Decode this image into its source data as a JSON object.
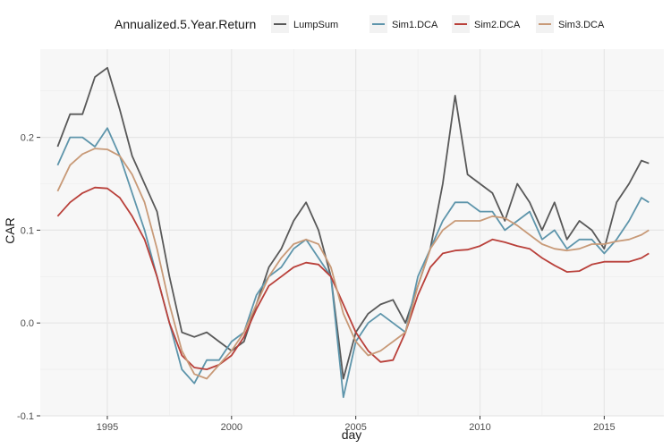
{
  "chart_data": {
    "type": "line",
    "title": "",
    "xlabel": "day",
    "ylabel": "CAR",
    "legend": {
      "title": "Annualized.5.Year.Return",
      "placement": "top"
    },
    "xlim": [
      1992.3,
      2017.4
    ],
    "ylim": [
      -0.1,
      0.295
    ],
    "x_ticks": [
      1995,
      2000,
      2005,
      2010,
      2015
    ],
    "x_tick_labels": [
      "1995",
      "2000",
      "2005",
      "2010",
      "2015"
    ],
    "y_ticks": [
      -0.1,
      0.0,
      0.1,
      0.2
    ],
    "y_tick_labels": [
      "-0.1",
      "0.0",
      "0.1",
      "0.2"
    ],
    "grid": true,
    "x": [
      1993.0,
      1993.5,
      1994.0,
      1994.5,
      1995.0,
      1995.5,
      1996.0,
      1996.5,
      1997.0,
      1997.5,
      1998.0,
      1998.5,
      1999.0,
      1999.5,
      2000.0,
      2000.5,
      2001.0,
      2001.5,
      2002.0,
      2002.5,
      2003.0,
      2003.5,
      2004.0,
      2004.5,
      2005.0,
      2005.5,
      2006.0,
      2006.5,
      2007.0,
      2007.5,
      2008.0,
      2008.5,
      2009.0,
      2009.5,
      2010.0,
      2010.5,
      2011.0,
      2011.5,
      2012.0,
      2012.5,
      2013.0,
      2013.5,
      2014.0,
      2014.5,
      2015.0,
      2015.5,
      2016.0,
      2016.5,
      2016.8
    ],
    "series": [
      {
        "name": "LumpSum",
        "color": "#595959",
        "values": [
          0.19,
          0.225,
          0.225,
          0.265,
          0.275,
          0.23,
          0.18,
          0.15,
          0.12,
          0.05,
          -0.01,
          -0.015,
          -0.01,
          -0.02,
          -0.03,
          -0.02,
          0.02,
          0.06,
          0.08,
          0.11,
          0.13,
          0.1,
          0.05,
          -0.06,
          -0.01,
          0.01,
          0.02,
          0.025,
          0.0,
          0.04,
          0.08,
          0.15,
          0.245,
          0.16,
          0.15,
          0.14,
          0.11,
          0.15,
          0.13,
          0.1,
          0.13,
          0.09,
          0.11,
          0.1,
          0.08,
          0.13,
          0.15,
          0.175,
          0.172
        ]
      },
      {
        "name": "Sim1.DCA",
        "color": "#5e95ab",
        "values": [
          0.17,
          0.2,
          0.2,
          0.19,
          0.21,
          0.18,
          0.14,
          0.1,
          0.05,
          0.0,
          -0.05,
          -0.065,
          -0.04,
          -0.04,
          -0.02,
          -0.01,
          0.03,
          0.05,
          0.06,
          0.08,
          0.09,
          0.07,
          0.05,
          -0.08,
          -0.02,
          0.0,
          0.01,
          0.0,
          -0.01,
          0.05,
          0.08,
          0.11,
          0.13,
          0.13,
          0.12,
          0.12,
          0.1,
          0.11,
          0.12,
          0.09,
          0.1,
          0.08,
          0.09,
          0.09,
          0.075,
          0.09,
          0.11,
          0.135,
          0.13
        ]
      },
      {
        "name": "Sim2.DCA",
        "color": "#b9403a",
        "values": [
          0.115,
          0.13,
          0.14,
          0.146,
          0.145,
          0.135,
          0.115,
          0.09,
          0.05,
          0.0,
          -0.035,
          -0.048,
          -0.05,
          -0.045,
          -0.035,
          -0.015,
          0.015,
          0.04,
          0.05,
          0.06,
          0.065,
          0.063,
          0.05,
          0.02,
          -0.01,
          -0.03,
          -0.042,
          -0.04,
          -0.01,
          0.03,
          0.06,
          0.075,
          0.078,
          0.079,
          0.083,
          0.09,
          0.087,
          0.083,
          0.08,
          0.07,
          0.062,
          0.055,
          0.056,
          0.063,
          0.066,
          0.066,
          0.066,
          0.07,
          0.075
        ]
      },
      {
        "name": "Sim3.DCA",
        "color": "#c89a78",
        "values": [
          0.142,
          0.17,
          0.182,
          0.188,
          0.187,
          0.18,
          0.16,
          0.13,
          0.08,
          0.02,
          -0.03,
          -0.055,
          -0.06,
          -0.045,
          -0.03,
          -0.01,
          0.02,
          0.05,
          0.07,
          0.085,
          0.09,
          0.085,
          0.06,
          0.01,
          -0.02,
          -0.035,
          -0.03,
          -0.02,
          -0.01,
          0.04,
          0.08,
          0.1,
          0.11,
          0.11,
          0.11,
          0.115,
          0.113,
          0.105,
          0.095,
          0.085,
          0.08,
          0.078,
          0.08,
          0.085,
          0.085,
          0.088,
          0.09,
          0.095,
          0.1
        ]
      }
    ]
  }
}
